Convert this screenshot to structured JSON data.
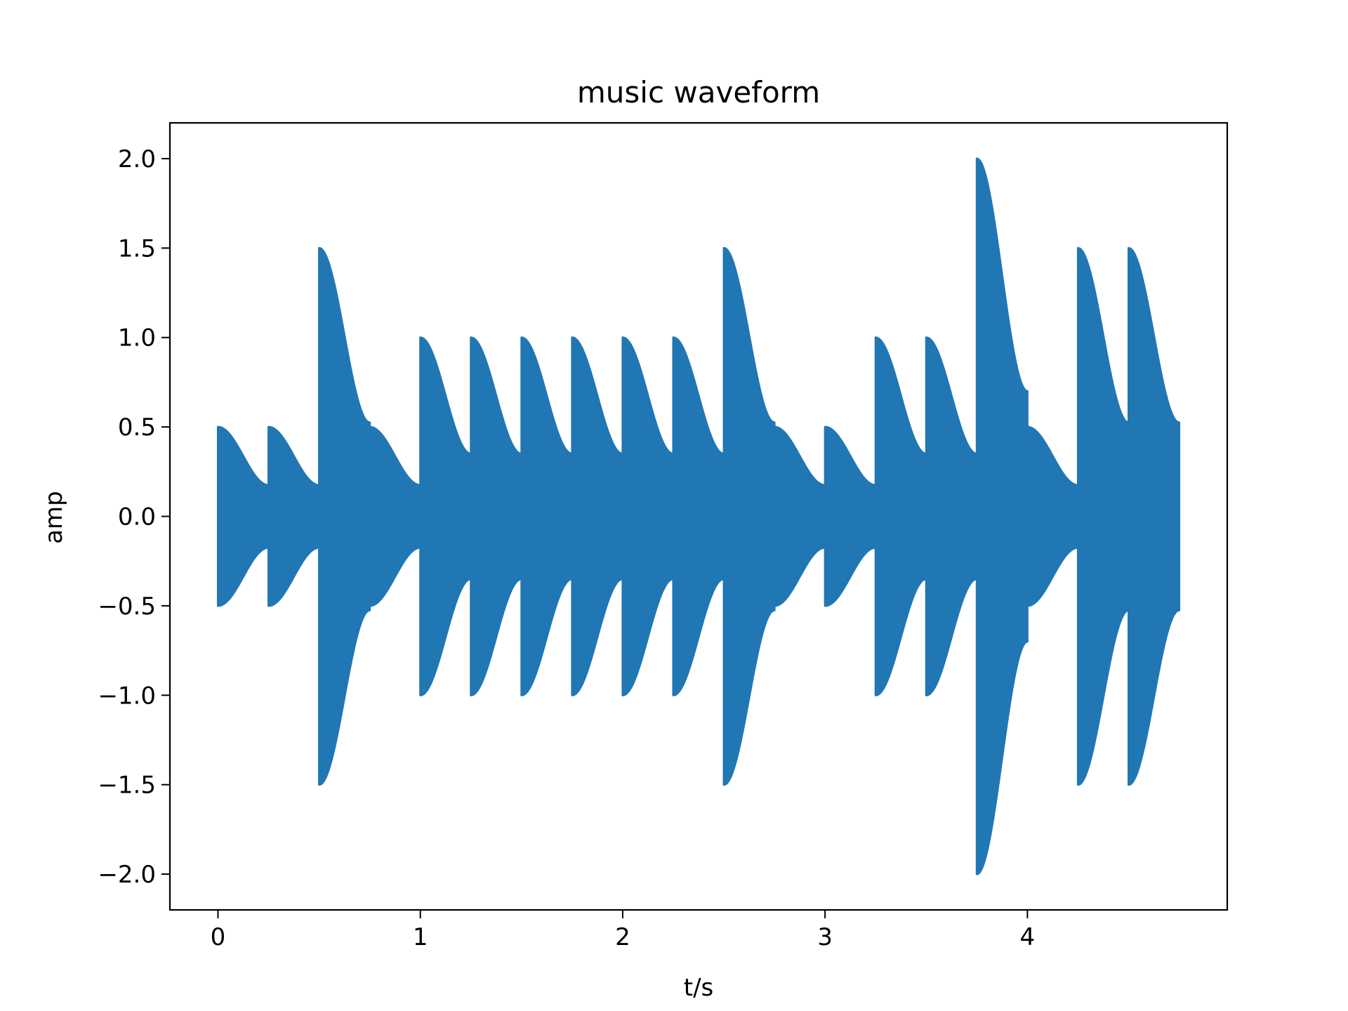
{
  "chart_data": {
    "type": "area",
    "title": "music waveform",
    "xlabel": "t/s",
    "ylabel": "amp",
    "xlim": [
      -0.2375,
      4.9875
    ],
    "ylim": [
      -2.2,
      2.2
    ],
    "xticks": [
      0,
      1,
      2,
      3,
      4
    ],
    "xtick_labels": [
      "0",
      "1",
      "2",
      "3",
      "4"
    ],
    "yticks": [
      -2.0,
      -1.5,
      -1.0,
      -0.5,
      0.0,
      0.5,
      1.0,
      1.5,
      2.0
    ],
    "ytick_labels": [
      "−2.0",
      "−1.5",
      "−1.0",
      "−0.5",
      "0.0",
      "0.5",
      "1.0",
      "1.5",
      "2.0"
    ],
    "grid": false,
    "legend": "none",
    "color": "#2077b4",
    "series": [
      {
        "envelope_note_segments": [
          {
            "start": 0.0,
            "end": 0.25,
            "peak": 0.5
          },
          {
            "start": 0.25,
            "end": 0.5,
            "peak": 0.5
          },
          {
            "start": 0.5,
            "end": 0.75,
            "peak": 1.5
          },
          {
            "start": 0.75,
            "end": 1.0,
            "peak": 0.5
          },
          {
            "start": 1.0,
            "end": 1.25,
            "peak": 1.0
          },
          {
            "start": 1.25,
            "end": 1.5,
            "peak": 1.0
          },
          {
            "start": 1.5,
            "end": 1.75,
            "peak": 1.0
          },
          {
            "start": 1.75,
            "end": 2.0,
            "peak": 1.0
          },
          {
            "start": 2.0,
            "end": 2.25,
            "peak": 1.0
          },
          {
            "start": 2.25,
            "end": 2.5,
            "peak": 1.0
          },
          {
            "start": 2.5,
            "end": 2.75,
            "peak": 1.5
          },
          {
            "start": 2.75,
            "end": 3.0,
            "peak": 0.5
          },
          {
            "start": 3.0,
            "end": 3.25,
            "peak": 0.5
          },
          {
            "start": 3.25,
            "end": 3.5,
            "peak": 1.0
          },
          {
            "start": 3.5,
            "end": 3.75,
            "peak": 1.0
          },
          {
            "start": 3.75,
            "end": 4.0,
            "peak": 2.0
          },
          {
            "start": 4.0,
            "end": 4.25,
            "peak": 0.5
          },
          {
            "start": 4.25,
            "end": 4.5,
            "peak": 1.5
          },
          {
            "start": 4.5,
            "end": 4.75,
            "peak": 1.5
          }
        ]
      }
    ]
  }
}
